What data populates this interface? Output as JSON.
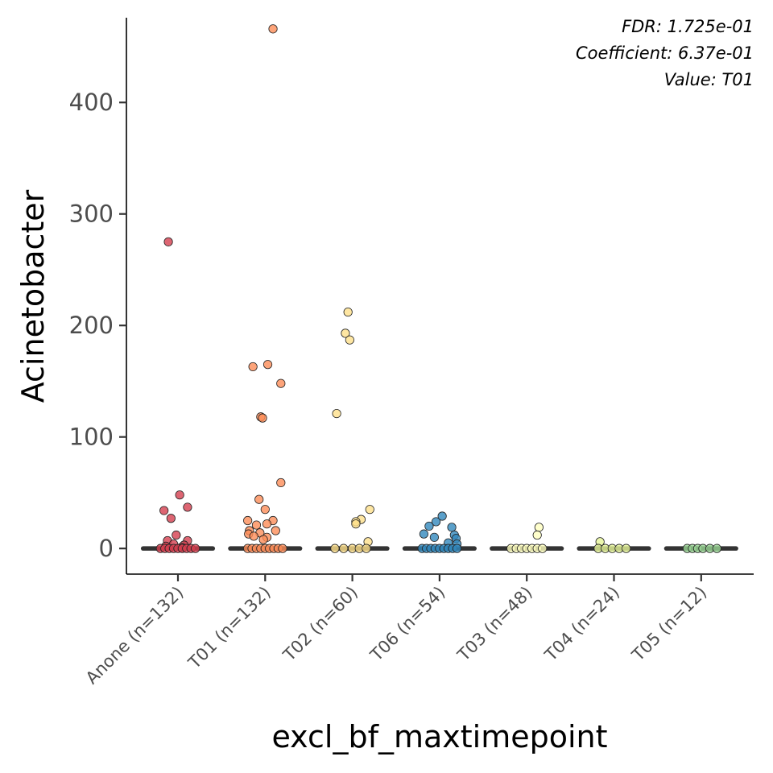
{
  "chart_data": {
    "type": "scatter",
    "subtype": "jitter-strip with median crossbar",
    "xlabel": "excl_bf_maxtimepoint",
    "ylabel": "Acinetobacter",
    "ylim": [
      -23,
      476
    ],
    "yticks": [
      0,
      100,
      200,
      300,
      400
    ],
    "grid": false,
    "legend": "none",
    "annotations": [
      "FDR: 1.725e-01",
      "Coefficient: 6.37e-01",
      "Value: T01"
    ],
    "categories": [
      "Anone (n=132)",
      "T01 (n=132)",
      "T02 (n=60)",
      "T06 (n=54)",
      "T03 (n=48)",
      "T04 (n=24)",
      "T05 (n=12)"
    ],
    "colors": [
      "#d53e4f",
      "#fc8d59",
      "#fee08b",
      "#3288bd",
      "#ffffbf",
      "#e6f598",
      "#99d594"
    ],
    "medians": [
      0,
      0,
      0,
      0,
      0,
      0,
      0
    ],
    "series": [
      {
        "category": "Anone (n=132)",
        "points": [
          {
            "x": -0.11,
            "y": 275
          },
          {
            "x": 0.02,
            "y": 48
          },
          {
            "x": 0.11,
            "y": 37
          },
          {
            "x": -0.16,
            "y": 34
          },
          {
            "x": -0.08,
            "y": 27
          },
          {
            "x": -0.02,
            "y": 12
          },
          {
            "x": -0.12,
            "y": 7
          },
          {
            "x": 0.11,
            "y": 7
          },
          {
            "x": -0.05,
            "y": 4
          },
          {
            "x": 0.07,
            "y": 3
          },
          {
            "x": -0.14,
            "y": 2
          },
          {
            "x": 0.04,
            "y": 1
          },
          {
            "x": -0.2,
            "y": 0
          },
          {
            "x": -0.15,
            "y": 0
          },
          {
            "x": -0.1,
            "y": 0
          },
          {
            "x": -0.05,
            "y": 0
          },
          {
            "x": 0.0,
            "y": 0
          },
          {
            "x": 0.05,
            "y": 0
          },
          {
            "x": 0.1,
            "y": 0
          },
          {
            "x": 0.15,
            "y": 0
          },
          {
            "x": 0.2,
            "y": 0
          }
        ]
      },
      {
        "category": "T01 (n=132)",
        "points": [
          {
            "x": 0.09,
            "y": 466
          },
          {
            "x": 0.03,
            "y": 165
          },
          {
            "x": -0.14,
            "y": 163
          },
          {
            "x": 0.18,
            "y": 148
          },
          {
            "x": -0.05,
            "y": 118
          },
          {
            "x": -0.03,
            "y": 117
          },
          {
            "x": 0.18,
            "y": 59
          },
          {
            "x": -0.07,
            "y": 44
          },
          {
            "x": 0.0,
            "y": 35
          },
          {
            "x": -0.2,
            "y": 25
          },
          {
            "x": 0.09,
            "y": 25
          },
          {
            "x": 0.02,
            "y": 22
          },
          {
            "x": -0.1,
            "y": 21
          },
          {
            "x": -0.18,
            "y": 16
          },
          {
            "x": 0.12,
            "y": 16
          },
          {
            "x": -0.06,
            "y": 14
          },
          {
            "x": -0.19,
            "y": 13
          },
          {
            "x": -0.13,
            "y": 11
          },
          {
            "x": 0.02,
            "y": 10
          },
          {
            "x": -0.02,
            "y": 8
          },
          {
            "x": -0.2,
            "y": 0
          },
          {
            "x": -0.15,
            "y": 0
          },
          {
            "x": -0.1,
            "y": 0
          },
          {
            "x": -0.05,
            "y": 0
          },
          {
            "x": 0.0,
            "y": 0
          },
          {
            "x": 0.05,
            "y": 0
          },
          {
            "x": 0.1,
            "y": 0
          },
          {
            "x": 0.15,
            "y": 0
          },
          {
            "x": 0.2,
            "y": 0
          }
        ]
      },
      {
        "category": "T02 (n=60)",
        "points": [
          {
            "x": -0.05,
            "y": 212
          },
          {
            "x": -0.08,
            "y": 193
          },
          {
            "x": -0.03,
            "y": 187
          },
          {
            "x": -0.18,
            "y": 121
          },
          {
            "x": 0.2,
            "y": 35
          },
          {
            "x": 0.1,
            "y": 26
          },
          {
            "x": 0.04,
            "y": 24
          },
          {
            "x": 0.04,
            "y": 22
          },
          {
            "x": 0.18,
            "y": 6
          },
          {
            "x": -0.2,
            "y": 0
          },
          {
            "x": -0.1,
            "y": 0
          },
          {
            "x": 0.0,
            "y": 0
          },
          {
            "x": 0.08,
            "y": 0
          },
          {
            "x": 0.16,
            "y": 0
          }
        ]
      },
      {
        "category": "T06 (n=54)",
        "points": [
          {
            "x": 0.03,
            "y": 29
          },
          {
            "x": -0.04,
            "y": 24
          },
          {
            "x": -0.12,
            "y": 20
          },
          {
            "x": 0.14,
            "y": 19
          },
          {
            "x": -0.18,
            "y": 13
          },
          {
            "x": 0.17,
            "y": 12
          },
          {
            "x": -0.06,
            "y": 10
          },
          {
            "x": 0.19,
            "y": 9
          },
          {
            "x": 0.1,
            "y": 5
          },
          {
            "x": 0.2,
            "y": 4
          },
          {
            "x": -0.2,
            "y": 0
          },
          {
            "x": -0.15,
            "y": 0
          },
          {
            "x": -0.1,
            "y": 0
          },
          {
            "x": -0.05,
            "y": 0
          },
          {
            "x": 0.0,
            "y": 0
          },
          {
            "x": 0.05,
            "y": 0
          },
          {
            "x": 0.1,
            "y": 0
          },
          {
            "x": 0.15,
            "y": 0
          },
          {
            "x": 0.2,
            "y": 0
          }
        ]
      },
      {
        "category": "T03 (n=48)",
        "points": [
          {
            "x": 0.14,
            "y": 19
          },
          {
            "x": 0.12,
            "y": 12
          },
          {
            "x": -0.18,
            "y": 0
          },
          {
            "x": -0.12,
            "y": 0
          },
          {
            "x": -0.06,
            "y": 0
          },
          {
            "x": 0.0,
            "y": 0
          },
          {
            "x": 0.06,
            "y": 0
          },
          {
            "x": 0.12,
            "y": 0
          },
          {
            "x": 0.18,
            "y": 0
          }
        ]
      },
      {
        "category": "T04 (n=24)",
        "points": [
          {
            "x": -0.16,
            "y": 6
          },
          {
            "x": -0.18,
            "y": 0
          },
          {
            "x": -0.1,
            "y": 0
          },
          {
            "x": -0.02,
            "y": 0
          },
          {
            "x": 0.06,
            "y": 0
          },
          {
            "x": 0.14,
            "y": 0
          }
        ]
      },
      {
        "category": "T05 (n=12)",
        "points": [
          {
            "x": -0.16,
            "y": 0
          },
          {
            "x": -0.1,
            "y": 0
          },
          {
            "x": -0.04,
            "y": 0
          },
          {
            "x": 0.02,
            "y": 0
          },
          {
            "x": 0.1,
            "y": 0
          },
          {
            "x": 0.18,
            "y": 0
          }
        ]
      }
    ]
  }
}
